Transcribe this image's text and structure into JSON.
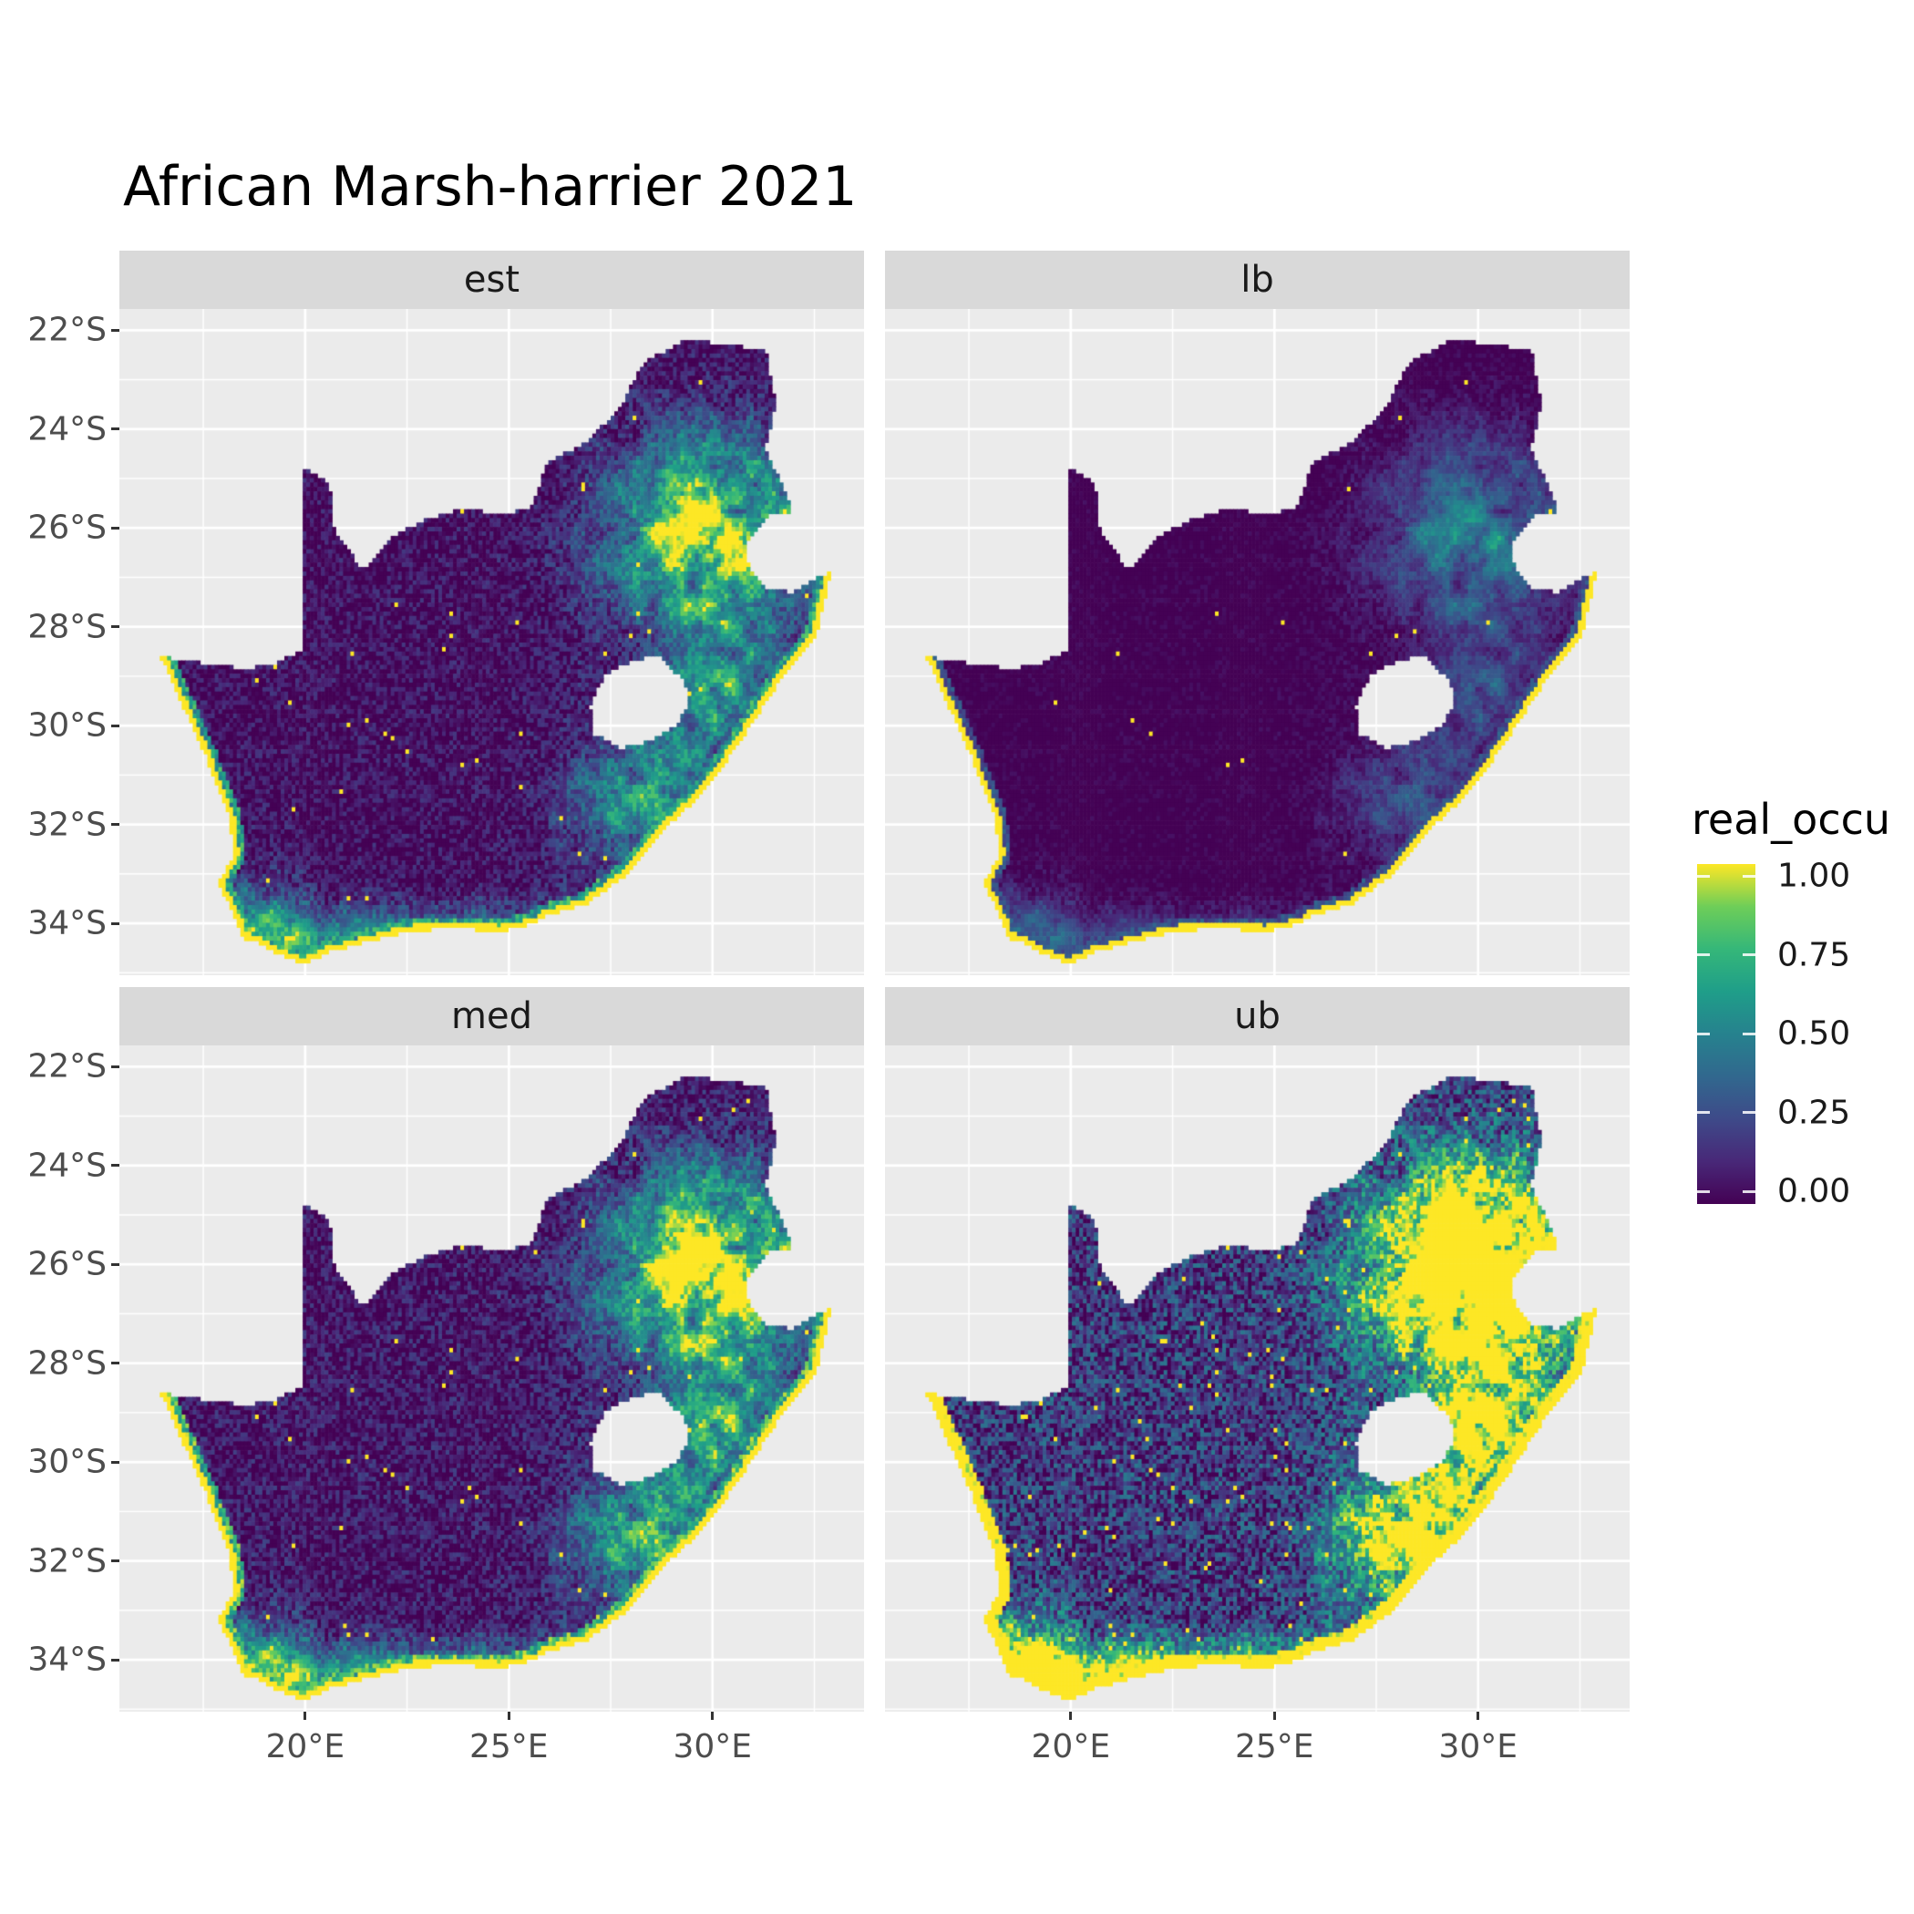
{
  "title": "African Marsh-harrier 2021",
  "axes": {
    "x_ticks": [
      {
        "label": "20°E",
        "lon": 20
      },
      {
        "label": "25°E",
        "lon": 25
      },
      {
        "label": "30°E",
        "lon": 30
      }
    ],
    "y_ticks": [
      {
        "label": "22°S",
        "lat": -22
      },
      {
        "label": "24°S",
        "lat": -24
      },
      {
        "label": "26°S",
        "lat": -26
      },
      {
        "label": "28°S",
        "lat": -28
      },
      {
        "label": "30°S",
        "lat": -30
      },
      {
        "label": "32°S",
        "lat": -32
      },
      {
        "label": "34°S",
        "lat": -34
      }
    ]
  },
  "legend": {
    "title": "real_occu",
    "ticks": [
      {
        "label": "1.00",
        "value": 1.0
      },
      {
        "label": "0.75",
        "value": 0.75
      },
      {
        "label": "0.50",
        "value": 0.5
      },
      {
        "label": "0.25",
        "value": 0.25
      },
      {
        "label": "0.00",
        "value": 0.0
      }
    ]
  },
  "chart_data": {
    "type": "heatmap",
    "subtype": "faceted-raster-map",
    "region": "South Africa",
    "variable": "real_occu",
    "title": "African Marsh-harrier 2021",
    "value_range": [
      0,
      1
    ],
    "legend_position": "right",
    "panel_background": "#EBEBEB",
    "strip_background": "#D9D9D9",
    "gridline_color": "#FFFFFF",
    "facets": [
      {
        "label": "est",
        "mul": 1.0,
        "add": 0.0,
        "sparkle": 0.9965
      },
      {
        "label": "lb",
        "mul": 0.5,
        "add": -0.04,
        "sparkle": 0.9985
      },
      {
        "label": "med",
        "mul": 1.12,
        "add": 0.02,
        "sparkle": 0.996
      },
      {
        "label": "ub",
        "mul": 1.8,
        "add": 0.12,
        "sparkle": 0.99
      }
    ],
    "colormap": {
      "name": "viridis",
      "stops": [
        [
          0.0,
          "#440154"
        ],
        [
          0.125,
          "#482878"
        ],
        [
          0.25,
          "#3e4a89"
        ],
        [
          0.375,
          "#31688e"
        ],
        [
          0.5,
          "#26828e"
        ],
        [
          0.625,
          "#1f9e89"
        ],
        [
          0.75,
          "#35b779"
        ],
        [
          0.875,
          "#6ece58"
        ],
        [
          1.0,
          "#fde725"
        ]
      ]
    },
    "projection": {
      "lon_min": 15.44,
      "lon_max": 33.72,
      "lat_top": -21.57,
      "lat_bottom": -35.05
    },
    "grid_deg": 0.09,
    "base": 0.04,
    "hotspots": [
      {
        "lon": 29.9,
        "lat": -26.2,
        "slon": 1.7,
        "slat": 1.4,
        "a": 1.0
      },
      {
        "lon": 30.2,
        "lat": -29.4,
        "slon": 0.9,
        "slat": 1.0,
        "a": 0.55
      },
      {
        "lon": 28.0,
        "lat": -31.3,
        "slon": 1.2,
        "slat": 0.9,
        "a": 0.3
      },
      {
        "lon": 18.9,
        "lat": -33.9,
        "slon": 0.7,
        "slat": 0.7,
        "a": 0.4
      },
      {
        "lon": 29.0,
        "lat": -31.8,
        "slon": 1.5,
        "slat": 1.2,
        "a": 0.35
      }
    ],
    "south_coast_band": {
      "lat": -34.3,
      "s": 0.45,
      "a": 0.5
    },
    "coast_start_index": 29,
    "boundary": [
      [
        16.45,
        -28.6
      ],
      [
        17.6,
        -28.75
      ],
      [
        18.6,
        -28.85
      ],
      [
        19.4,
        -28.7
      ],
      [
        19.98,
        -28.42
      ],
      [
        19.98,
        -24.77
      ],
      [
        20.6,
        -25.1
      ],
      [
        20.7,
        -26.0
      ],
      [
        21.4,
        -26.85
      ],
      [
        22.2,
        -26.15
      ],
      [
        22.9,
        -25.85
      ],
      [
        23.9,
        -25.6
      ],
      [
        24.9,
        -25.75
      ],
      [
        25.6,
        -25.55
      ],
      [
        25.9,
        -24.7
      ],
      [
        26.9,
        -24.25
      ],
      [
        27.7,
        -23.6
      ],
      [
        28.3,
        -22.65
      ],
      [
        29.37,
        -22.19
      ],
      [
        30.5,
        -22.3
      ],
      [
        31.3,
        -22.4
      ],
      [
        31.55,
        -23.5
      ],
      [
        31.3,
        -24.4
      ],
      [
        31.98,
        -25.65
      ],
      [
        31.4,
        -25.73
      ],
      [
        30.8,
        -26.3
      ],
      [
        30.9,
        -26.8
      ],
      [
        31.3,
        -27.2
      ],
      [
        31.97,
        -27.31
      ],
      [
        32.9,
        -26.86
      ],
      [
        32.55,
        -28.2
      ],
      [
        31.8,
        -28.9
      ],
      [
        31.05,
        -29.85
      ],
      [
        30.3,
        -30.75
      ],
      [
        29.7,
        -31.4
      ],
      [
        28.8,
        -32.1
      ],
      [
        27.9,
        -33.0
      ],
      [
        26.9,
        -33.6
      ],
      [
        25.9,
        -33.85
      ],
      [
        25.65,
        -34.0
      ],
      [
        24.8,
        -34.15
      ],
      [
        23.6,
        -34.1
      ],
      [
        22.55,
        -34.15
      ],
      [
        21.6,
        -34.35
      ],
      [
        20.5,
        -34.6
      ],
      [
        20.0,
        -34.82
      ],
      [
        19.3,
        -34.6
      ],
      [
        18.8,
        -34.35
      ],
      [
        18.45,
        -34.3
      ],
      [
        18.3,
        -33.9
      ],
      [
        17.85,
        -33.2
      ],
      [
        18.25,
        -32.6
      ],
      [
        18.15,
        -31.9
      ],
      [
        17.55,
        -30.6
      ],
      [
        17.0,
        -29.6
      ]
    ],
    "lesotho_hole": [
      [
        27.0,
        -29.6
      ],
      [
        27.35,
        -28.95
      ],
      [
        28.1,
        -28.65
      ],
      [
        28.7,
        -28.6
      ],
      [
        29.3,
        -29.1
      ],
      [
        29.45,
        -29.5
      ],
      [
        29.15,
        -29.95
      ],
      [
        28.5,
        -30.3
      ],
      [
        27.75,
        -30.45
      ],
      [
        27.05,
        -30.15
      ]
    ]
  }
}
